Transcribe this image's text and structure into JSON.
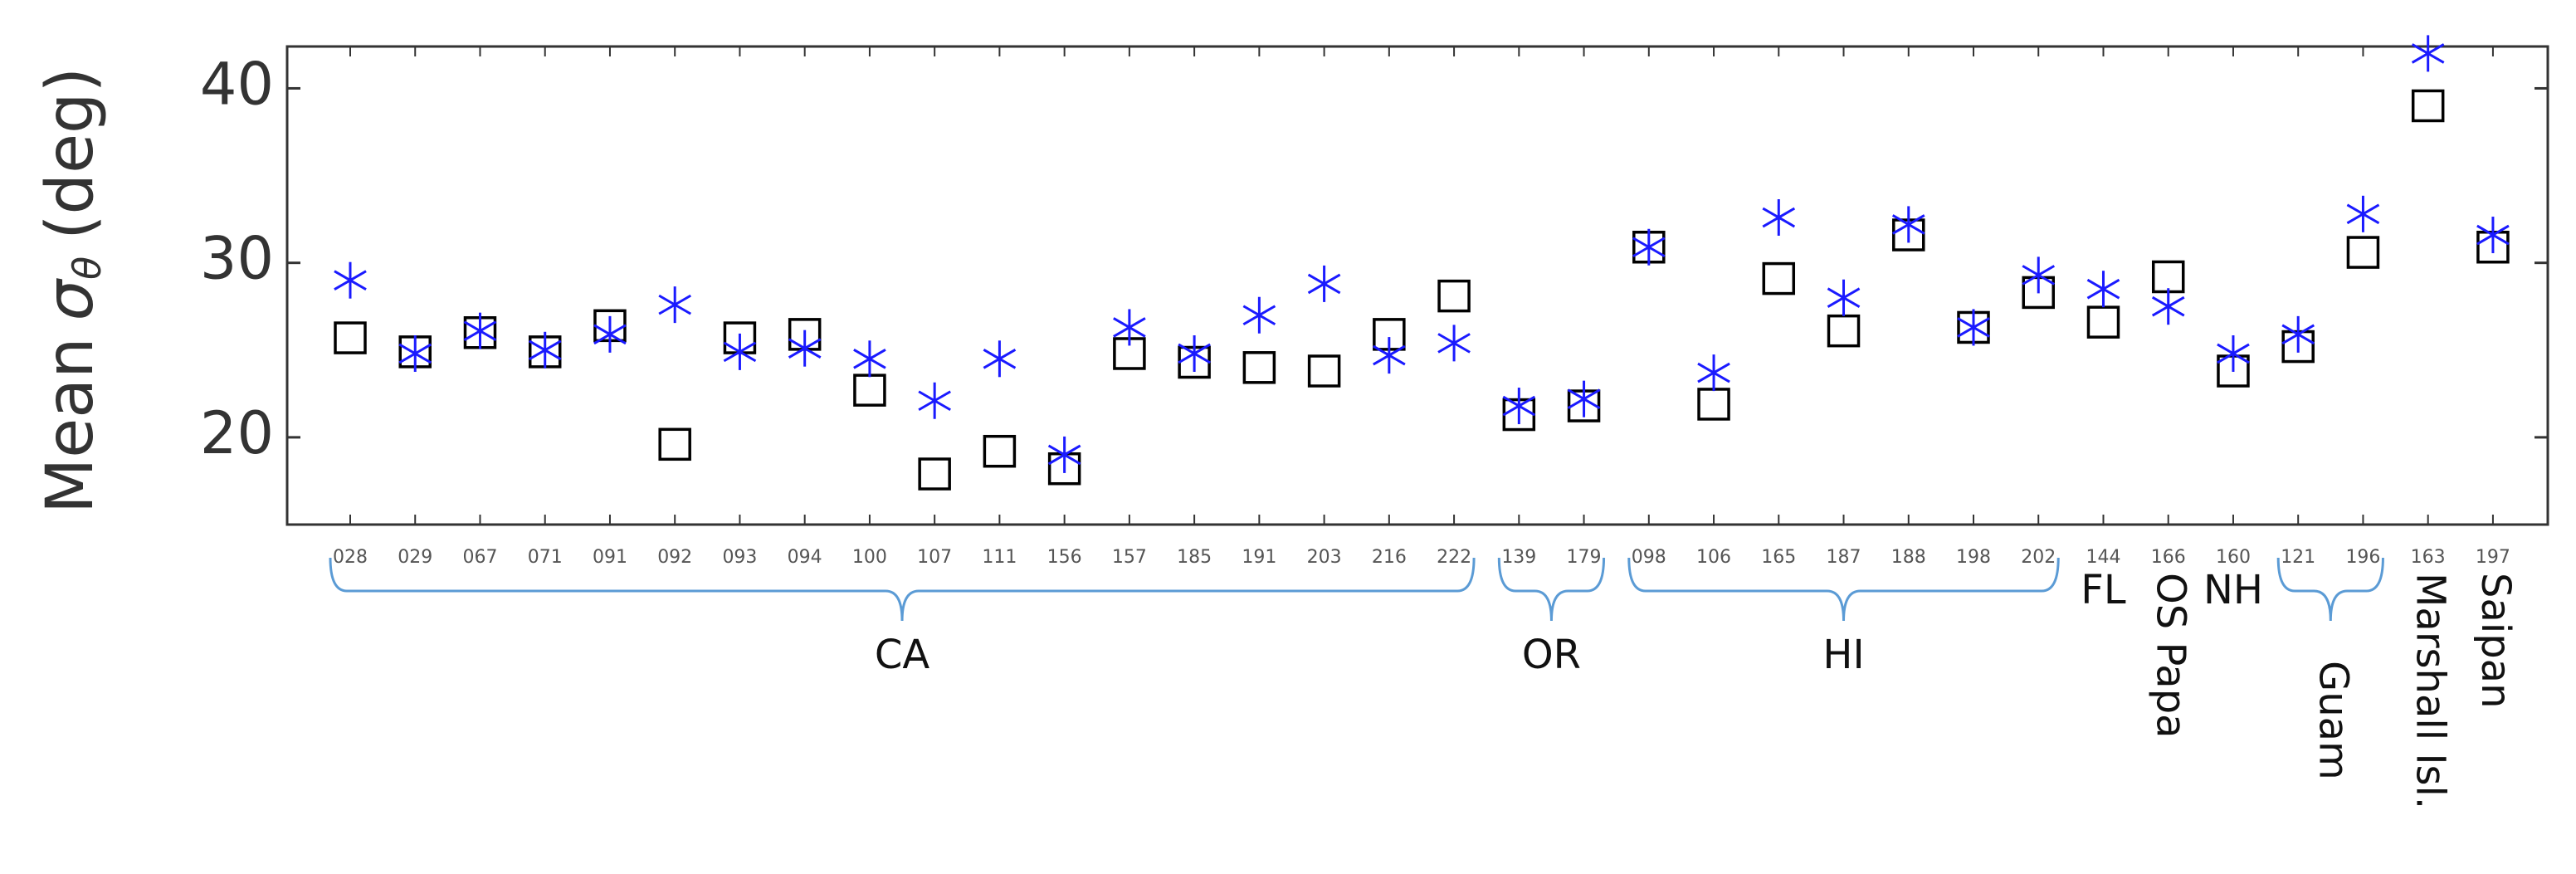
{
  "chart_data": {
    "type": "scatter",
    "ylabel": {
      "text": "Mean",
      "symbol": "σ",
      "subscript": "θ",
      "unit": "(deg)"
    },
    "categories": [
      "028",
      "029",
      "067",
      "071",
      "091",
      "092",
      "093",
      "094",
      "100",
      "107",
      "111",
      "156",
      "157",
      "185",
      "191",
      "203",
      "216",
      "222",
      "139",
      "179",
      "098",
      "106",
      "165",
      "187",
      "188",
      "198",
      "202",
      "144",
      "166",
      "160",
      "121",
      "196",
      "163",
      "197"
    ],
    "series": [
      {
        "marker": "square",
        "color": "#000000",
        "values": [
          25.7,
          24.9,
          26.0,
          24.9,
          26.4,
          19.6,
          25.7,
          25.9,
          22.7,
          17.9,
          19.2,
          18.2,
          24.8,
          24.3,
          24.0,
          23.8,
          25.9,
          28.1,
          21.3,
          21.8,
          30.9,
          21.9,
          29.1,
          26.1,
          31.6,
          26.3,
          28.3,
          26.6,
          29.2,
          23.8,
          25.2,
          30.6,
          39.0,
          30.9
        ]
      },
      {
        "marker": "asterisk",
        "color": "#1a1aff",
        "values": [
          29.0,
          24.8,
          26.1,
          25.0,
          25.9,
          27.6,
          24.9,
          25.1,
          24.5,
          22.1,
          24.5,
          19.0,
          26.3,
          24.8,
          27.0,
          28.8,
          24.7,
          25.4,
          21.8,
          22.2,
          30.9,
          23.7,
          32.6,
          28.0,
          32.2,
          26.3,
          29.3,
          28.5,
          27.5,
          24.8,
          25.9,
          32.8,
          42.0,
          31.6
        ]
      }
    ],
    "ylim": [
      15,
      42.4
    ],
    "yticks": [
      20,
      30,
      40
    ],
    "groups": [
      {
        "label": "CA",
        "span": [
          "028",
          "222"
        ],
        "brace": true,
        "rotated": false
      },
      {
        "label": "OR",
        "span": [
          "139",
          "179"
        ],
        "brace": true,
        "rotated": false
      },
      {
        "label": "HI",
        "span": [
          "098",
          "202"
        ],
        "brace": true,
        "rotated": false
      },
      {
        "label": "FL",
        "span": [
          "144",
          "144"
        ],
        "brace": false,
        "rotated": false
      },
      {
        "label": "OS Papa",
        "span": [
          "166",
          "166"
        ],
        "brace": false,
        "rotated": true
      },
      {
        "label": "NH",
        "span": [
          "160",
          "160"
        ],
        "brace": false,
        "rotated": false
      },
      {
        "label": "Guam",
        "span": [
          "121",
          "196"
        ],
        "brace": true,
        "rotated": true
      },
      {
        "label": "Marshall Isl.",
        "span": [
          "163",
          "163"
        ],
        "brace": false,
        "rotated": true
      },
      {
        "label": "Saipan",
        "span": [
          "197",
          "197"
        ],
        "brace": false,
        "rotated": true
      }
    ]
  }
}
